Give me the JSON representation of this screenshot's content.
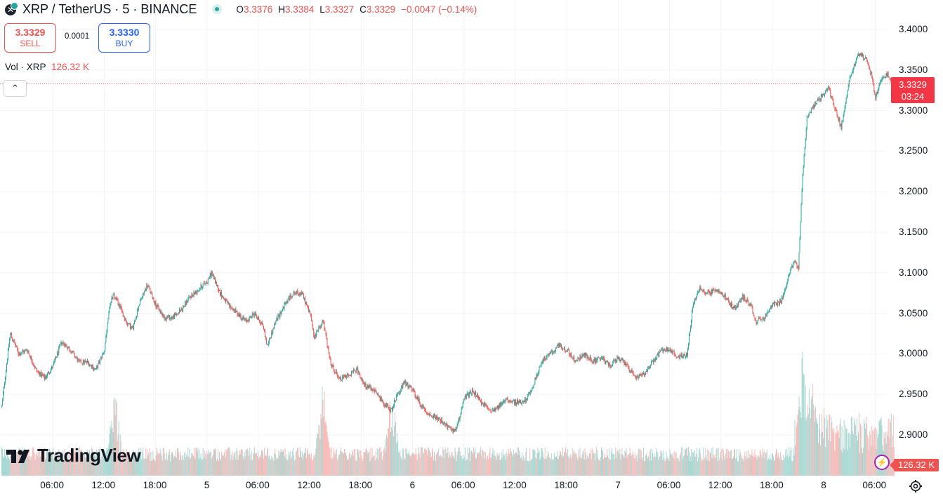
{
  "header": {
    "symbol_title": "XRP / TetherUS · 5 · BINANCE",
    "ohlc": [
      {
        "key": "O",
        "value": "3.3376"
      },
      {
        "key": "H",
        "value": "3.3384"
      },
      {
        "key": "L",
        "value": "3.3327"
      },
      {
        "key": "C",
        "value": "3.3329"
      }
    ],
    "change": "−0.0047 (−0.14%)",
    "symbol_icon": "xrp-icon",
    "live_icon": "live-status-dot-icon"
  },
  "trade": {
    "sell_price": "3.3329",
    "sell_label": "SELL",
    "spread": "0.0001",
    "buy_price": "3.3330",
    "buy_label": "BUY"
  },
  "volume_legend": {
    "label": "Vol · XRP",
    "value": "126.32 K"
  },
  "collapse_icon": "chevron-up-icon",
  "last_price": {
    "price": "3.3329",
    "countdown": "03:24"
  },
  "volume_tag": "126.32 K",
  "brand": {
    "name": "TradingView",
    "logo_icon": "tradingview-logo-icon"
  },
  "colors": {
    "up": "#26a69a",
    "down": "#ef5350",
    "vol_up": "#9fd4cf",
    "vol_down": "#f5b5b3",
    "grid": "#f0f3fa",
    "last_line": "#ef5350"
  },
  "chart_data": {
    "type": "candlestick",
    "symbol": "XRP / TetherUS",
    "interval": "5",
    "exchange": "BINANCE",
    "price_axis": {
      "ticks": [
        "3.4000",
        "3.3500",
        "3.3000",
        "3.2500",
        "3.2000",
        "3.1500",
        "3.1000",
        "3.0500",
        "3.0000",
        "2.9500",
        "2.9000"
      ],
      "range": [
        2.88,
        3.415
      ]
    },
    "time_axis": {
      "ticks": [
        "06:00",
        "12:00",
        "18:00",
        "5",
        "06:00",
        "12:00",
        "18:00",
        "6",
        "06:00",
        "12:00",
        "18:00",
        "7",
        "06:00",
        "12:00",
        "18:00",
        "8",
        "06:00"
      ],
      "tick_hours": [
        6,
        12,
        18,
        24,
        30,
        36,
        42,
        48,
        54,
        60,
        66,
        72,
        78,
        84,
        90,
        96,
        102
      ],
      "range_hours": [
        0,
        104.2
      ]
    },
    "price_path": [
      [
        0,
        2.935
      ],
      [
        0.6,
        2.99
      ],
      [
        1,
        3.025
      ],
      [
        2,
        3.0
      ],
      [
        3,
        3.005
      ],
      [
        4,
        2.98
      ],
      [
        5,
        2.97
      ],
      [
        6,
        2.985
      ],
      [
        7,
        3.015
      ],
      [
        8,
        3.005
      ],
      [
        9,
        2.99
      ],
      [
        10,
        2.99
      ],
      [
        11,
        2.98
      ],
      [
        12,
        3.005
      ],
      [
        12.5,
        3.05
      ],
      [
        13,
        3.075
      ],
      [
        13.7,
        3.06
      ],
      [
        14.5,
        3.04
      ],
      [
        15.3,
        3.03
      ],
      [
        16,
        3.06
      ],
      [
        17,
        3.085
      ],
      [
        18,
        3.06
      ],
      [
        19,
        3.045
      ],
      [
        20,
        3.045
      ],
      [
        21,
        3.055
      ],
      [
        22,
        3.07
      ],
      [
        23,
        3.08
      ],
      [
        24,
        3.09
      ],
      [
        24.5,
        3.1
      ],
      [
        25.5,
        3.075
      ],
      [
        26.5,
        3.06
      ],
      [
        27.5,
        3.05
      ],
      [
        28.5,
        3.04
      ],
      [
        29.5,
        3.05
      ],
      [
        30.5,
        3.035
      ],
      [
        31,
        3.01
      ],
      [
        32,
        3.04
      ],
      [
        33,
        3.06
      ],
      [
        34,
        3.075
      ],
      [
        35,
        3.075
      ],
      [
        36,
        3.05
      ],
      [
        36.5,
        3.02
      ],
      [
        37,
        3.03
      ],
      [
        37.5,
        3.04
      ],
      [
        38.5,
        2.985
      ],
      [
        39.5,
        2.97
      ],
      [
        40.5,
        2.975
      ],
      [
        41.5,
        2.98
      ],
      [
        42.5,
        2.96
      ],
      [
        43.5,
        2.955
      ],
      [
        44.5,
        2.94
      ],
      [
        45.5,
        2.93
      ],
      [
        46,
        2.945
      ],
      [
        47,
        2.965
      ],
      [
        48,
        2.955
      ],
      [
        49,
        2.935
      ],
      [
        50,
        2.925
      ],
      [
        51,
        2.92
      ],
      [
        52,
        2.91
      ],
      [
        53,
        2.905
      ],
      [
        54,
        2.945
      ],
      [
        55,
        2.955
      ],
      [
        56,
        2.94
      ],
      [
        57,
        2.93
      ],
      [
        58,
        2.935
      ],
      [
        59,
        2.945
      ],
      [
        60,
        2.94
      ],
      [
        61,
        2.94
      ],
      [
        62,
        2.96
      ],
      [
        63,
        2.99
      ],
      [
        64,
        3.0
      ],
      [
        65,
        3.01
      ],
      [
        66,
        3.005
      ],
      [
        67,
        2.99
      ],
      [
        68,
        3.0
      ],
      [
        69,
        2.99
      ],
      [
        70,
        2.995
      ],
      [
        71,
        2.985
      ],
      [
        72,
        2.995
      ],
      [
        73,
        2.985
      ],
      [
        74,
        2.97
      ],
      [
        75,
        2.975
      ],
      [
        76,
        2.99
      ],
      [
        77,
        3.005
      ],
      [
        78,
        3.005
      ],
      [
        79,
        2.995
      ],
      [
        80,
        3.0
      ],
      [
        80.7,
        3.06
      ],
      [
        81.5,
        3.08
      ],
      [
        82.5,
        3.075
      ],
      [
        83.5,
        3.08
      ],
      [
        84.5,
        3.07
      ],
      [
        85.5,
        3.055
      ],
      [
        86.5,
        3.07
      ],
      [
        87.5,
        3.06
      ],
      [
        88,
        3.04
      ],
      [
        89,
        3.045
      ],
      [
        90,
        3.06
      ],
      [
        91,
        3.065
      ],
      [
        92,
        3.1
      ],
      [
        92.5,
        3.115
      ],
      [
        93,
        3.105
      ],
      [
        93.5,
        3.22
      ],
      [
        94,
        3.29
      ],
      [
        95,
        3.31
      ],
      [
        96,
        3.32
      ],
      [
        96.5,
        3.33
      ],
      [
        97,
        3.31
      ],
      [
        98,
        3.28
      ],
      [
        99,
        3.34
      ],
      [
        100,
        3.37
      ],
      [
        100.8,
        3.365
      ],
      [
        101.5,
        3.345
      ],
      [
        102,
        3.315
      ],
      [
        102.6,
        3.335
      ],
      [
        103.4,
        3.345
      ],
      [
        104.1,
        3.3329
      ]
    ],
    "volume_spikes": [
      [
        13.2,
        0.7
      ],
      [
        37.5,
        0.8
      ],
      [
        45.5,
        0.75
      ],
      [
        93.5,
        1.0
      ],
      [
        94.5,
        0.9
      ],
      [
        96,
        0.55
      ],
      [
        99.5,
        0.4
      ],
      [
        102.6,
        0.35
      ]
    ],
    "last_price": 3.3329,
    "last_volume": "126.32 K"
  }
}
